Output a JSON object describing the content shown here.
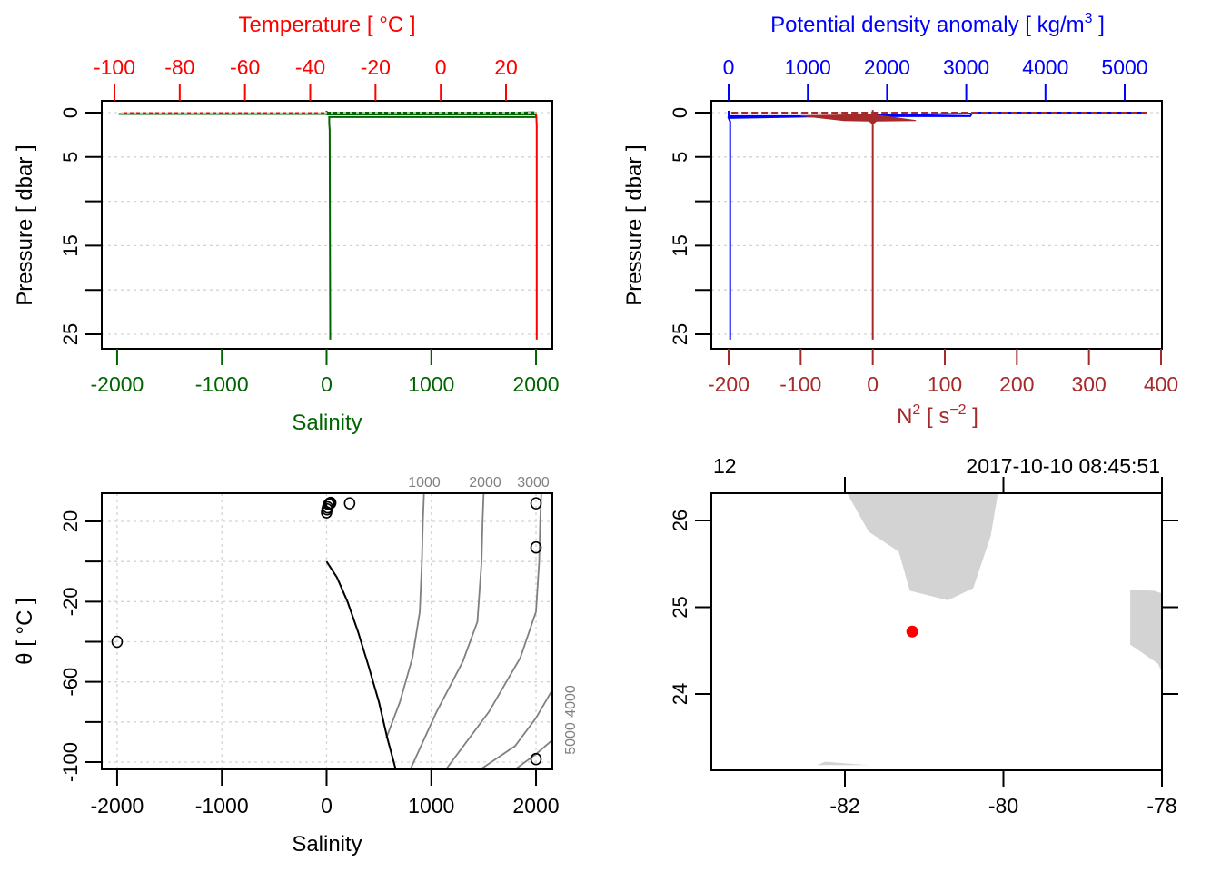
{
  "figure": {
    "description": "CTD summary plot: profiles, TS diagram and station map",
    "colors": {
      "temperature": "#ff0000",
      "salinity": "#006400",
      "density": "#0000ff",
      "n2": "#a52a2a",
      "axis": "#000000",
      "grid": "#d3d3d3",
      "isopycnal": "#808080",
      "land": "#d3d3d3",
      "station": "#ff0000"
    }
  },
  "chart_data": [
    {
      "id": "profile-ts",
      "type": "line",
      "title": "Temperature [ °C ]",
      "xlabel": "Salinity",
      "ylabel": "Pressure [ dbar ]",
      "top_axis": {
        "label": "Temperature [ °C ]",
        "ticks": [
          -100,
          -80,
          -60,
          -40,
          -20,
          0,
          20
        ],
        "tick_labels": [
          "-100",
          "-80",
          "-60",
          "-40",
          "-20",
          "0",
          "20"
        ],
        "range": [
          -101.4,
          34.3
        ]
      },
      "bottom_axis": {
        "label": "Salinity",
        "ticks": [
          -2000,
          -1000,
          0,
          1000,
          2000
        ],
        "tick_labels": [
          "-2000",
          "-1000",
          "0",
          "1000",
          "2000"
        ],
        "range": [
          -2147,
          2156
        ]
      },
      "left_axis": {
        "ticks": [
          0,
          5,
          10,
          15,
          20,
          25
        ],
        "tick_labels": [
          "0",
          "5",
          "",
          "15",
          "",
          "25"
        ],
        "range": [
          26.6,
          -1.3
        ],
        "reversed": true
      },
      "grid": true,
      "series": [
        {
          "name": "Temperature",
          "axis": "top",
          "points": [
            [
              -98,
              0.05
            ],
            [
              -40,
              0.05
            ],
            [
              20,
              0.05
            ],
            [
              28.5,
              -0.05
            ],
            [
              29.2,
              0.1
            ],
            [
              29.3,
              0.5
            ],
            [
              29.4,
              1.5
            ],
            [
              29.4,
              10
            ],
            [
              29.4,
              25.6
            ]
          ]
        },
        {
          "name": "Salinity",
          "axis": "bottom",
          "points": [
            [
              -1985,
              0.15
            ],
            [
              0,
              0.15
            ],
            [
              0,
              -0.2
            ],
            [
              0,
              0.15
            ],
            [
              2000,
              0.0
            ],
            [
              2000,
              0.5
            ],
            [
              25,
              0.5
            ],
            [
              25,
              1.2
            ],
            [
              30,
              2
            ],
            [
              35,
              25.6
            ]
          ]
        }
      ]
    },
    {
      "id": "profile-density-n2",
      "type": "line",
      "title": "Potential density anomaly [ kg/m3 ]",
      "xlabel": "N2 [ s-2 ]",
      "ylabel": "Pressure [ dbar ]",
      "top_axis": {
        "label_main": "Potential density anomaly [ kg/m",
        "label_sup": "3",
        "label_end": " ]",
        "ticks": [
          0,
          1000,
          2000,
          3000,
          4000,
          5000
        ],
        "tick_labels": [
          "0",
          "1000",
          "2000",
          "3000",
          "4000",
          "5000"
        ],
        "range": [
          -218,
          5470
        ]
      },
      "bottom_axis": {
        "label_main": "N",
        "label_sup1": "2",
        "label_mid": " [ s",
        "label_sup2": "−2",
        "label_end": " ]",
        "ticks": [
          -200,
          -100,
          0,
          100,
          200,
          300,
          400
        ],
        "tick_labels": [
          "-200",
          "-100",
          "0",
          "100",
          "200",
          "300",
          "400"
        ],
        "range": [
          -224,
          401
        ]
      },
      "left_axis": {
        "ticks": [
          0,
          5,
          10,
          15,
          20,
          25
        ],
        "tick_labels": [
          "0",
          "5",
          "",
          "15",
          "",
          "25"
        ],
        "range": [
          26.6,
          -1.3
        ],
        "reversed": true
      },
      "grid": true,
      "series": [
        {
          "name": "Potential density anomaly",
          "axis": "top",
          "points": [
            [
              0,
              -0.2
            ],
            [
              0,
              0.4
            ],
            [
              3050,
              0.4
            ],
            [
              3080,
              0.0
            ],
            [
              5250,
              0.0
            ],
            [
              5260,
              0.1
            ],
            [
              3080,
              0.1
            ],
            [
              0,
              0.6
            ],
            [
              20,
              1.0
            ],
            [
              20,
              25.6
            ]
          ]
        },
        {
          "name": "N2",
          "axis": "bottom",
          "points": [
            [
              -196,
              0.0
            ],
            [
              380,
              0.0
            ],
            [
              380,
              0.1
            ],
            [
              0,
              0.05
            ],
            [
              0,
              -0.3
            ],
            [
              -100,
              0.4
            ],
            [
              60,
              0.9
            ],
            [
              0,
              1.0
            ],
            [
              -40,
              1.1
            ],
            [
              0,
              1.2
            ],
            [
              0,
              25.6
            ]
          ]
        }
      ]
    },
    {
      "id": "ts-diagram",
      "type": "scatter",
      "xlabel": "Salinity",
      "ylabel": "θ [ °C ]",
      "x_axis": {
        "ticks": [
          -2000,
          -1000,
          0,
          1000,
          2000
        ],
        "tick_labels": [
          "-2000",
          "-1000",
          "0",
          "1000",
          "2000"
        ],
        "range": [
          -2147,
          2156
        ]
      },
      "y_axis": {
        "ticks": [
          20,
          0,
          -20,
          -40,
          -60,
          -80,
          -100
        ],
        "tick_labels": [
          "20",
          "",
          "-20",
          "",
          "-60",
          "",
          "-100"
        ],
        "range": [
          -103.6,
          34.1
        ]
      },
      "grid": true,
      "points": [
        [
          0,
          24.5
        ],
        [
          5,
          26
        ],
        [
          10,
          27
        ],
        [
          20,
          28.5
        ],
        [
          30,
          29
        ],
        [
          40,
          29.2
        ],
        [
          220,
          29
        ],
        [
          2000,
          29
        ],
        [
          2000,
          7
        ],
        [
          -2000,
          -40
        ],
        [
          2000,
          -98.5
        ]
      ],
      "freezing_line": [
        [
          0,
          0
        ],
        [
          100,
          -8
        ],
        [
          200,
          -20
        ],
        [
          300,
          -35
        ],
        [
          400,
          -52
        ],
        [
          500,
          -70
        ],
        [
          580,
          -88
        ],
        [
          660,
          -103.6
        ]
      ],
      "isopycnals": [
        {
          "label": "1000",
          "points": [
            [
              930,
              34.1
            ],
            [
              920,
              20
            ],
            [
              910,
              0
            ],
            [
              890,
              -25
            ],
            [
              820,
              -48
            ],
            [
              700,
              -70
            ],
            [
              570,
              -88
            ]
          ]
        },
        {
          "label": "2000",
          "points": [
            [
              1500,
              34.1
            ],
            [
              1490,
              20
            ],
            [
              1480,
              0
            ],
            [
              1440,
              -30
            ],
            [
              1300,
              -50
            ],
            [
              1050,
              -75
            ],
            [
              800,
              -103.6
            ]
          ]
        },
        {
          "label": "3000",
          "points": [
            [
              2050,
              34.1
            ],
            [
              2040,
              20
            ],
            [
              2030,
              0
            ],
            [
              2000,
              -25
            ],
            [
              1850,
              -48
            ],
            [
              1550,
              -75
            ],
            [
              1140,
              -103.6
            ]
          ]
        },
        {
          "label": "4000",
          "points": [
            [
              2156,
              -64
            ],
            [
              2000,
              -78
            ],
            [
              1800,
              -92
            ],
            [
              1470,
              -103.6
            ]
          ]
        },
        {
          "label": "5000",
          "points": [
            [
              2156,
              -89
            ],
            [
              2000,
              -96
            ],
            [
              1800,
              -103.6
            ]
          ]
        }
      ]
    },
    {
      "id": "station-map",
      "type": "scatter",
      "x_axis": {
        "ticks": [
          -82,
          -80,
          -78
        ],
        "tick_labels": [
          "-82",
          "-80",
          "-78"
        ],
        "range": [
          -83.69,
          -78
        ]
      },
      "y_axis": {
        "ticks": [
          24,
          25,
          26
        ],
        "tick_labels": [
          "24",
          "25",
          "26"
        ],
        "range": [
          23.18,
          26.31
        ]
      },
      "station": {
        "lon": -81.15,
        "lat": 24.72
      },
      "station_label": "12",
      "time_label": "2017-10-10 08:45:51",
      "land": [
        [
          [
            -81.97,
            26.31
          ],
          [
            -81.7,
            25.87
          ],
          [
            -81.32,
            25.64
          ],
          [
            -81.18,
            25.19
          ],
          [
            -80.7,
            25.08
          ],
          [
            -80.38,
            25.22
          ],
          [
            -80.16,
            25.82
          ],
          [
            -80.07,
            26.31
          ]
        ],
        [
          [
            -78.4,
            25.2
          ],
          [
            -78.1,
            25.19
          ],
          [
            -78.0,
            25.16
          ],
          [
            -78.0,
            24.25
          ],
          [
            -78.05,
            24.35
          ],
          [
            -78.4,
            24.57
          ]
        ],
        [
          [
            -82.35,
            23.18
          ],
          [
            -82.25,
            23.22
          ],
          [
            -82.0,
            23.2
          ],
          [
            -81.7,
            23.18
          ]
        ]
      ]
    }
  ]
}
